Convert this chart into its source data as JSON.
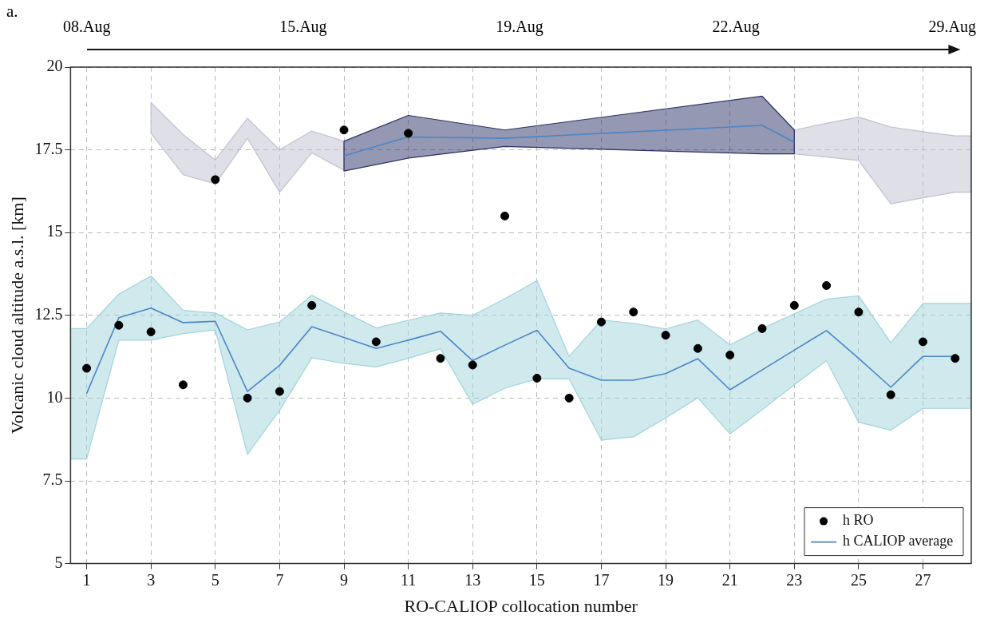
{
  "chart_data": {
    "type": "line",
    "title": "a.",
    "annotations": [
      "08.Aug",
      "15.Aug",
      "19.Aug",
      "22.Aug",
      "29.Aug"
    ],
    "xlabel": "RO-CALIOP collocation number",
    "ylabel": "Volcanic cloud altitude a.s.l. [km]",
    "xlim": [
      0.5,
      28.5
    ],
    "xticks": [
      1,
      3,
      5,
      7,
      9,
      11,
      13,
      15,
      17,
      19,
      21,
      23,
      25,
      27
    ],
    "ylim": [
      5,
      20
    ],
    "yticks": [
      5,
      7.5,
      10,
      12.5,
      15,
      17.5,
      20
    ],
    "grid": true,
    "legend": "bottom right",
    "series": [
      {
        "type": "scatter",
        "name": "h RO",
        "color": "#000000",
        "x": [
          1,
          2,
          3,
          4,
          5,
          6,
          7,
          8,
          9,
          10,
          11,
          12,
          13,
          14,
          15,
          16,
          17,
          18,
          19,
          20,
          21,
          22,
          23,
          24,
          25,
          26,
          27,
          28
        ],
        "values": [
          10.9,
          12.2,
          12.0,
          10.4,
          16.6,
          10.0,
          10.2,
          12.8,
          18.1,
          11.7,
          18.0,
          11.2,
          11.0,
          15.5,
          10.6,
          10.0,
          12.3,
          12.6,
          11.9,
          11.5,
          11.3,
          12.1,
          12.8,
          13.4,
          12.6,
          10.1,
          11.7,
          11.2
        ]
      },
      {
        "type": "line",
        "color": "#c0c0d2",
        "x": [
          3,
          4,
          5,
          6,
          7,
          8,
          9
        ],
        "values": [
          null,
          null,
          null,
          null,
          null,
          null,
          null
        ],
        "lower": [
          18.0,
          16.75,
          16.47,
          17.85,
          16.22,
          17.41,
          16.88
        ],
        "upper": [
          18.93,
          17.96,
          17.19,
          18.45,
          17.5,
          18.07,
          17.76
        ]
      },
      {
        "type": "line",
        "color": "#c0c0d2",
        "x": [
          23,
          24,
          25,
          26,
          27,
          28,
          28.5
        ],
        "values": [
          null,
          null,
          null,
          null,
          null,
          null,
          null
        ],
        "lower": [
          17.38,
          17.28,
          17.18,
          15.87,
          16.05,
          16.22,
          16.22
        ],
        "upper": [
          18.1,
          18.3,
          18.49,
          18.19,
          18.05,
          17.92,
          17.92
        ]
      },
      {
        "type": "line",
        "color": "#2b3165",
        "x": [
          9,
          11,
          14,
          22,
          23
        ],
        "values": [
          null,
          null,
          null,
          null,
          null
        ],
        "lower": [
          16.86,
          17.25,
          17.6,
          17.38,
          17.38
        ],
        "upper": [
          17.76,
          18.54,
          18.1,
          19.12,
          18.1
        ]
      },
      {
        "type": "line",
        "color": "#4a86c8",
        "x": [
          9,
          11,
          14,
          22,
          23
        ],
        "values": [
          17.32,
          17.89,
          17.85,
          18.24,
          17.73
        ]
      },
      {
        "type": "line",
        "color": "#a0d4dc",
        "x": [
          0.5,
          1,
          2,
          3,
          4,
          5,
          6,
          7,
          8,
          9,
          10,
          11,
          12,
          13,
          14,
          15,
          16,
          17,
          18,
          19,
          20,
          21,
          22,
          23,
          24,
          25,
          26,
          27,
          28,
          28.5
        ],
        "values": [
          null,
          null,
          null,
          null,
          null,
          null,
          null,
          null,
          null,
          null,
          null,
          null,
          null,
          null,
          null,
          null,
          null,
          null,
          null,
          null,
          null,
          null,
          null,
          null,
          null,
          null,
          null,
          null,
          null,
          null
        ],
        "lower": [
          8.16,
          8.16,
          11.75,
          11.75,
          11.95,
          12.06,
          8.3,
          9.63,
          11.22,
          11.05,
          10.94,
          11.2,
          11.49,
          9.81,
          10.3,
          10.58,
          10.58,
          8.73,
          8.83,
          9.4,
          10.01,
          8.92,
          9.65,
          10.4,
          11.13,
          9.27,
          9.03,
          9.69,
          9.69,
          9.69
        ],
        "upper": [
          12.1,
          12.1,
          13.14,
          13.69,
          12.65,
          12.57,
          12.06,
          12.3,
          13.11,
          12.6,
          12.12,
          12.35,
          12.57,
          12.5,
          13.0,
          13.55,
          11.26,
          12.36,
          12.26,
          12.09,
          12.36,
          11.61,
          12.1,
          12.55,
          12.99,
          13.09,
          11.67,
          12.86,
          12.86,
          12.86
        ]
      },
      {
        "type": "line",
        "name": "h CALIOP average",
        "color": "#4a86c8",
        "x": [
          1,
          2,
          3,
          4,
          5,
          6,
          7,
          8,
          9,
          10,
          11,
          12,
          13,
          14,
          15,
          16,
          17,
          18,
          19,
          20,
          21,
          22,
          23,
          24,
          25,
          26,
          27,
          28
        ],
        "values": [
          10.14,
          12.43,
          12.72,
          12.28,
          12.32,
          10.2,
          10.99,
          12.16,
          11.83,
          11.5,
          11.75,
          12.02,
          11.13,
          11.6,
          12.05,
          10.9,
          10.54,
          10.54,
          10.74,
          11.19,
          10.25,
          10.85,
          11.45,
          12.04,
          11.2,
          10.33,
          11.26,
          11.26
        ]
      }
    ]
  }
}
